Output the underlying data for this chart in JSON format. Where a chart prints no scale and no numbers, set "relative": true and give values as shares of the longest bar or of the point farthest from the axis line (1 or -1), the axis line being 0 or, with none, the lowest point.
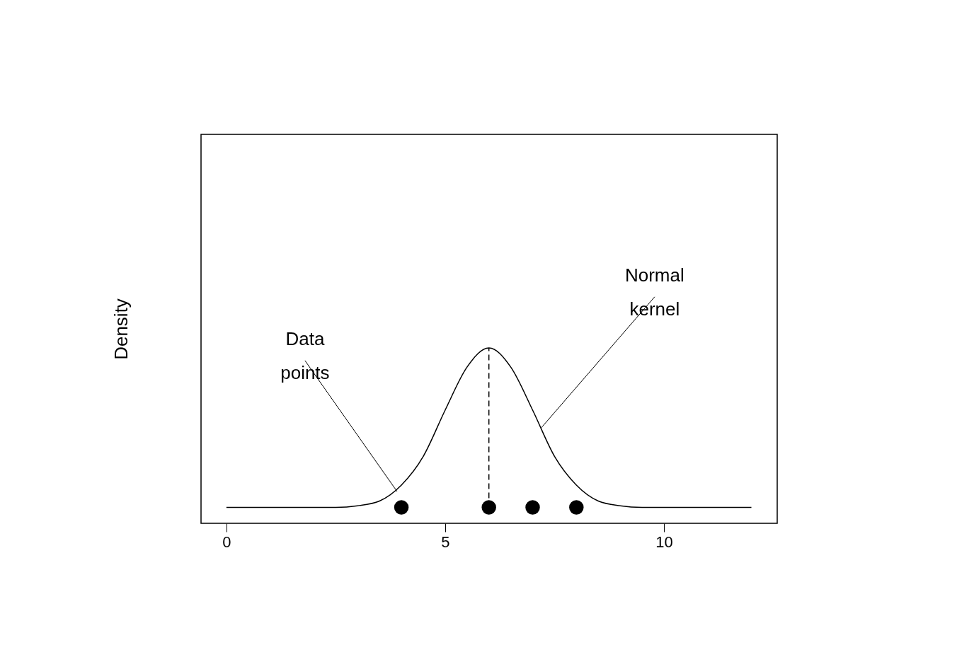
{
  "chart_data": {
    "type": "line",
    "ylabel": "Density",
    "relative": true,
    "xlim": [
      -0.58,
      12.59
    ],
    "xticks": [
      0,
      5,
      10
    ],
    "grid": false,
    "marker": "none",
    "series": [
      {
        "color": "#000000",
        "x": [
          0,
          1,
          2,
          2.5,
          3,
          3.5,
          4,
          4.5,
          5,
          5.5,
          6,
          6.5,
          7,
          7.5,
          8,
          8.5,
          9,
          9.5,
          10,
          11,
          12
        ],
        "values": [
          0,
          0,
          0,
          0,
          0.01,
          0.04,
          0.14,
          0.32,
          0.61,
          0.88,
          1,
          0.88,
          0.61,
          0.32,
          0.14,
          0.04,
          0.01,
          0,
          0,
          0,
          0
        ]
      },
      {
        "color": "#000000",
        "line_style": "dashed",
        "x": [
          6,
          6
        ],
        "values": [
          0,
          1
        ]
      },
      {
        "type": "scatter",
        "color": "#000000",
        "marker": "circle",
        "x": [
          4,
          6,
          7,
          8
        ],
        "values": [
          0,
          0,
          0,
          0
        ]
      }
    ],
    "annotations": [
      {
        "text": "Data points",
        "x": 3.9,
        "y": 0.1
      },
      {
        "text": "Normal kernel",
        "x": 7.2,
        "y": 0.5
      }
    ]
  }
}
